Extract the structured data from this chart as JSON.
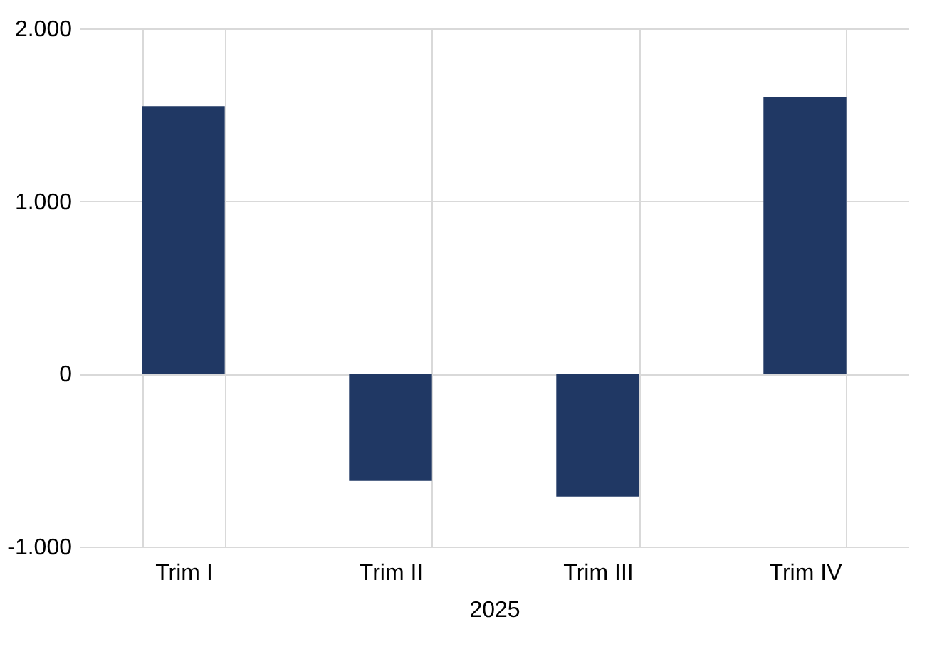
{
  "chart_data": {
    "type": "bar",
    "categories": [
      "Trim I",
      "Trim II",
      "Trim III",
      "Trim IV"
    ],
    "values": [
      1550,
      -620,
      -710,
      1600
    ],
    "color": "#203864",
    "xlabel": "2025",
    "ylim": [
      -1000,
      2000
    ],
    "yticks": [
      {
        "value": -1000,
        "label": "-1.000"
      },
      {
        "value": 0,
        "label": "0"
      },
      {
        "value": 1000,
        "label": "1.000"
      },
      {
        "value": 2000,
        "label": "2.000"
      }
    ],
    "grid": true
  }
}
